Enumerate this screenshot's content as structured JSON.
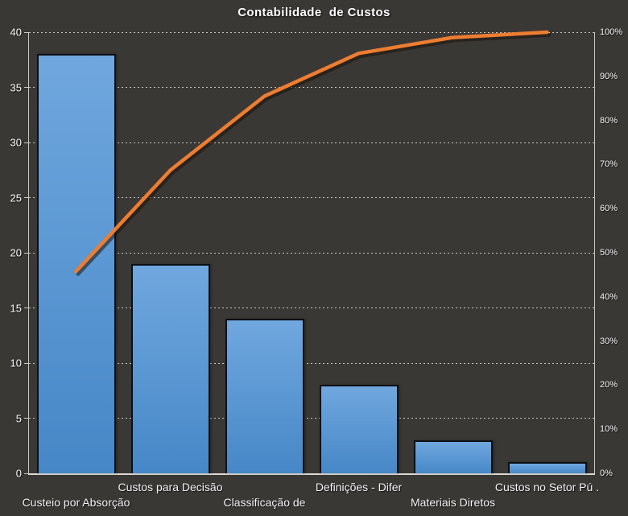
{
  "title": "Contabilidade  de Custos",
  "colors": {
    "background": "#3a3835",
    "bar_fill_top": "#70a7de",
    "bar_fill_bottom": "#4687c7",
    "bar_border": "#0d0f14",
    "line": "#ed7d31",
    "line_shadow": "#1c120a",
    "gridline": "#d8d5d0",
    "axis_line": "#ccc9c4",
    "text": "#f2f2f2"
  },
  "chart_data": {
    "type": "bar",
    "subtype": "pareto (bar + cumulative line)",
    "title": "Contabilidade  de Custos",
    "categories": [
      "Custeio por Absorção",
      "Custos para Decisão",
      "Classificação de",
      "Definições - Difer",
      "Materiais Diretos",
      "Custos no Setor Pú ."
    ],
    "series": [
      {
        "name": "frequency-bars",
        "type": "bar",
        "axis": "left",
        "values": [
          38,
          19,
          14,
          8,
          3,
          1
        ]
      },
      {
        "name": "cumulative-percent-line",
        "type": "line",
        "axis": "right",
        "values": [
          45.8,
          68.7,
          85.5,
          95.2,
          98.8,
          100
        ]
      }
    ],
    "left_axis": {
      "min": 0,
      "max": 40,
      "step": 5,
      "tick_labels": [
        "0",
        "5",
        "10",
        "15",
        "20",
        "25",
        "30",
        "35",
        "40"
      ]
    },
    "right_axis": {
      "min": 0,
      "max": 100,
      "step": 10,
      "tick_labels": [
        "0%",
        "10%",
        "20%",
        "30%",
        "40%",
        "50%",
        "60%",
        "70%",
        "80%",
        "90%",
        "100%"
      ]
    },
    "grid": "horizontal dashed, every 5 units of left axis",
    "legend": "none",
    "xlabel": "",
    "ylabel": ""
  }
}
